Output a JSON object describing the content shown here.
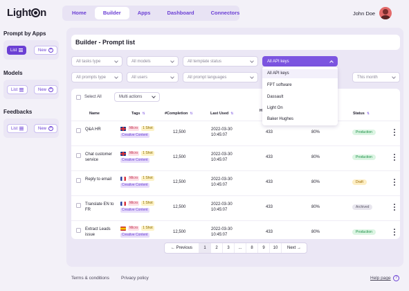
{
  "app": {
    "logo_left": "Light",
    "logo_right": "n"
  },
  "nav": {
    "items": [
      "Home",
      "Builder",
      "Apps",
      "Dashboard",
      "Connectors"
    ],
    "active": "Builder"
  },
  "user": {
    "name": "John Doe"
  },
  "sidebar": {
    "sections": [
      {
        "title": "Prompt by Apps",
        "list_label": "List",
        "new_label": "New",
        "list_active": true
      },
      {
        "title": "Models",
        "list_label": "List",
        "new_label": "New",
        "list_active": false
      },
      {
        "title": "Feedbacks",
        "list_label": "List",
        "new_label": "New",
        "list_active": false
      }
    ]
  },
  "page": {
    "title": "Builder - Prompt list"
  },
  "filters": {
    "row1": [
      "All tasks type",
      "All models",
      "All template status",
      "All API keys"
    ],
    "row2": [
      "All prompts type",
      "All users",
      "All prompt languages",
      "This month"
    ]
  },
  "dropdown": {
    "options": [
      "All API keys",
      "FPT software",
      "Dassault",
      "Light On",
      "Baker Hughes"
    ]
  },
  "table": {
    "select_all": "Select All",
    "multi_actions": "Multi actions",
    "headers": {
      "name": "Name",
      "tags": "Tags",
      "completion": "#Completion",
      "last_used": "Last Used",
      "h_col": "H",
      "status": "Status"
    },
    "rows": [
      {
        "name": "Q&A HR",
        "flag": "uk",
        "micro": "Micro",
        "shot": "1 Shot",
        "creative": "Creative Content",
        "completion": "12,500",
        "date": "2022-03-30",
        "time": "10:45:07",
        "h": "433",
        "pct": "80%",
        "status": "Production"
      },
      {
        "name": "Chat customer service",
        "flag": "uk",
        "micro": "Micro",
        "shot": "1 Shot",
        "creative": "Creative Content",
        "completion": "12,500",
        "date": "2022-03-30",
        "time": "10:45:07",
        "h": "433",
        "pct": "80%",
        "status": "Production"
      },
      {
        "name": "Reply to email",
        "flag": "fr",
        "micro": "Micro",
        "shot": "1 Shot",
        "creative": "Creative Content",
        "completion": "12,500",
        "date": "2022-03-30",
        "time": "10:45:07",
        "h": "433",
        "pct": "80%",
        "status": "Draft"
      },
      {
        "name": "Translate EN to FR",
        "flag": "fr",
        "micro": "Micro",
        "shot": "1 Shot",
        "creative": "Creative Content",
        "completion": "12,500",
        "date": "2022-03-30",
        "time": "10:45:07",
        "h": "433",
        "pct": "80%",
        "status": "Archived"
      },
      {
        "name": "Extract Leads issue",
        "flag": "es",
        "micro": "Micro",
        "shot": "1 Shot",
        "creative": "Creative Content",
        "completion": "12,500",
        "date": "2022-03-30",
        "time": "10:45:07",
        "h": "433",
        "pct": "80%",
        "status": "Production"
      }
    ]
  },
  "pagination": {
    "previous": "Previous",
    "next": "Next",
    "pages": [
      "1",
      "2",
      "3",
      "...",
      "8",
      "9",
      "10"
    ],
    "active": "1"
  },
  "footer": {
    "terms": "Terms & conditions",
    "privacy": "Privacy policy",
    "help": "Help page",
    "help_icon": "?"
  }
}
